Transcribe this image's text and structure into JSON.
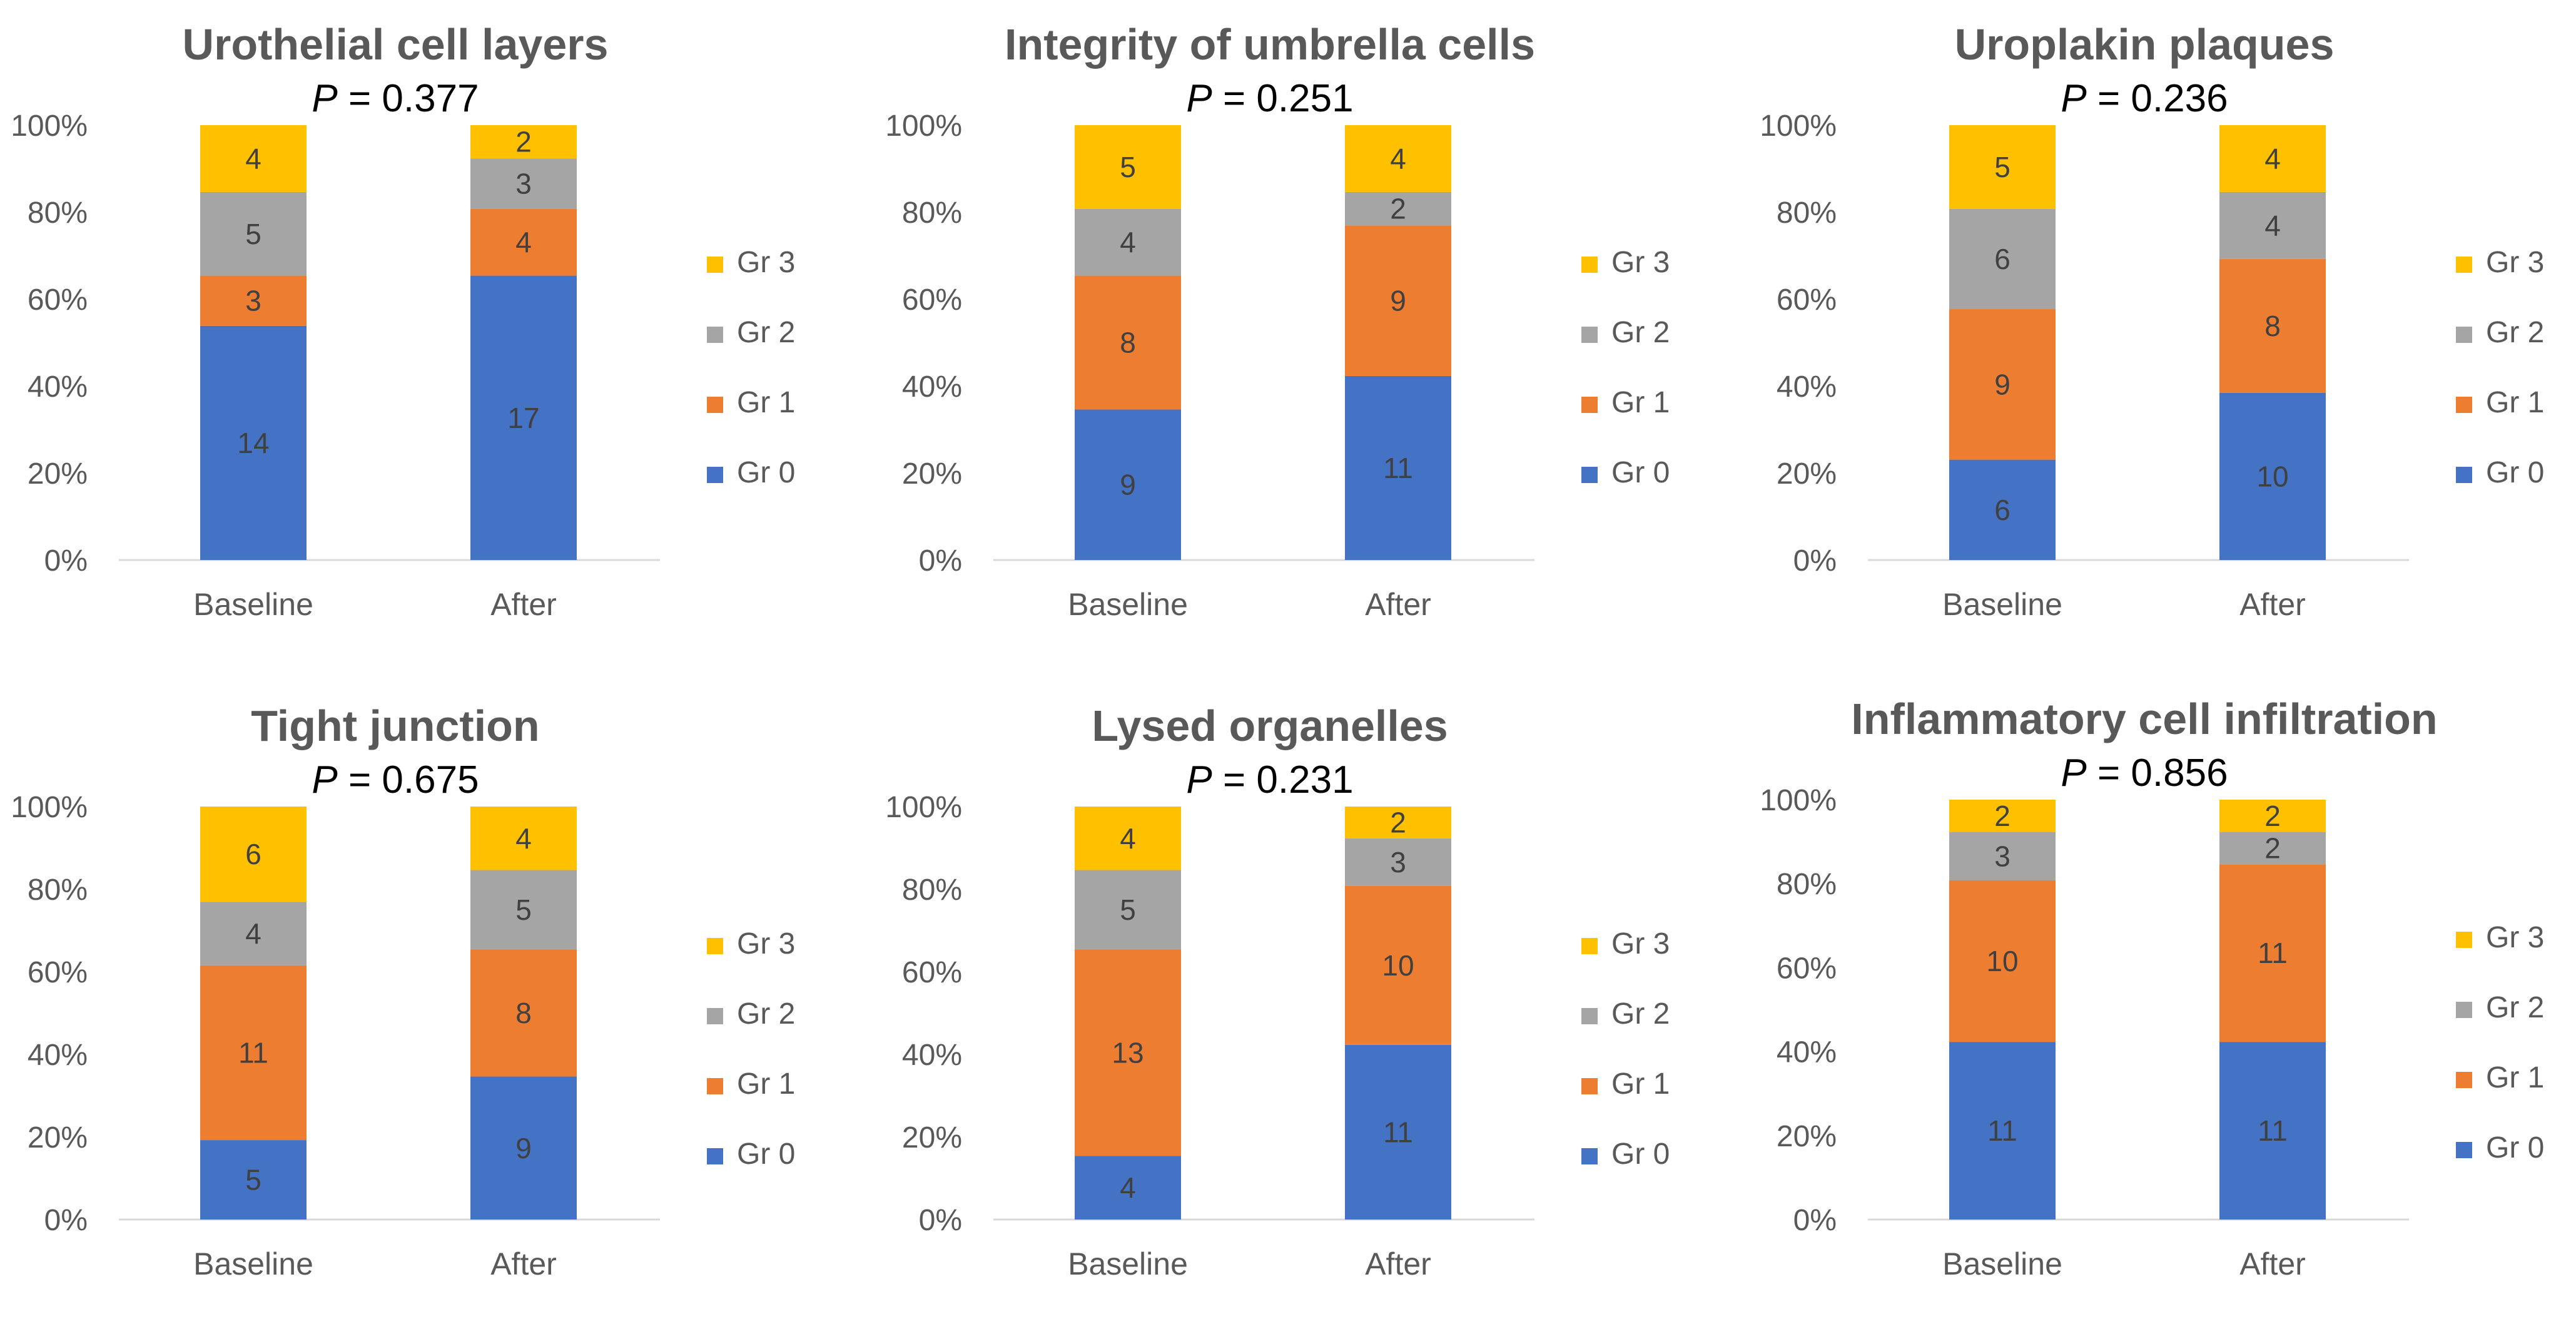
{
  "chart_data": [
    {
      "type": "bar",
      "stacked": "percent",
      "title": "Urothelial cell layers",
      "p_label": "P",
      "p_value": "= 0.377",
      "categories": [
        "Baseline",
        "After"
      ],
      "series": [
        {
          "name": "Gr 0",
          "values": [
            14,
            17
          ]
        },
        {
          "name": "Gr 1",
          "values": [
            3,
            4
          ]
        },
        {
          "name": "Gr 2",
          "values": [
            5,
            3
          ]
        },
        {
          "name": "Gr 3",
          "values": [
            4,
            2
          ]
        }
      ],
      "yticks": [
        "0%",
        "20%",
        "40%",
        "60%",
        "80%",
        "100%"
      ],
      "legend": "right",
      "grid": false
    },
    {
      "type": "bar",
      "stacked": "percent",
      "title": "Integrity of umbrella cells",
      "p_label": "P",
      "p_value": "= 0.251",
      "categories": [
        "Baseline",
        "After"
      ],
      "series": [
        {
          "name": "Gr 0",
          "values": [
            9,
            11
          ]
        },
        {
          "name": "Gr 1",
          "values": [
            8,
            9
          ]
        },
        {
          "name": "Gr 2",
          "values": [
            4,
            2
          ]
        },
        {
          "name": "Gr 3",
          "values": [
            5,
            4
          ]
        }
      ],
      "yticks": [
        "0%",
        "20%",
        "40%",
        "60%",
        "80%",
        "100%"
      ],
      "legend": "right",
      "grid": false
    },
    {
      "type": "bar",
      "stacked": "percent",
      "title": "Uroplakin plaques",
      "p_label": "P",
      "p_value": "= 0.236",
      "categories": [
        "Baseline",
        "After"
      ],
      "series": [
        {
          "name": "Gr 0",
          "values": [
            6,
            10
          ]
        },
        {
          "name": "Gr 1",
          "values": [
            9,
            8
          ]
        },
        {
          "name": "Gr 2",
          "values": [
            6,
            4
          ]
        },
        {
          "name": "Gr 3",
          "values": [
            5,
            4
          ]
        }
      ],
      "yticks": [
        "0%",
        "20%",
        "40%",
        "60%",
        "80%",
        "100%"
      ],
      "legend": "right",
      "grid": false
    },
    {
      "type": "bar",
      "stacked": "percent",
      "title": "Tight junction",
      "p_label": "P",
      "p_value": "= 0.675",
      "categories": [
        "Baseline",
        "After"
      ],
      "series": [
        {
          "name": "Gr 0",
          "values": [
            5,
            9
          ]
        },
        {
          "name": "Gr 1",
          "values": [
            11,
            8
          ]
        },
        {
          "name": "Gr 2",
          "values": [
            4,
            5
          ]
        },
        {
          "name": "Gr 3",
          "values": [
            6,
            4
          ]
        }
      ],
      "yticks": [
        "0%",
        "20%",
        "40%",
        "60%",
        "80%",
        "100%"
      ],
      "legend": "right",
      "grid": false
    },
    {
      "type": "bar",
      "stacked": "percent",
      "title": "Lysed organelles",
      "p_label": "P",
      "p_value": "= 0.231",
      "categories": [
        "Baseline",
        "After"
      ],
      "series": [
        {
          "name": "Gr 0",
          "values": [
            4,
            11
          ]
        },
        {
          "name": "Gr 1",
          "values": [
            13,
            10
          ]
        },
        {
          "name": "Gr 2",
          "values": [
            5,
            3
          ]
        },
        {
          "name": "Gr 3",
          "values": [
            4,
            2
          ]
        }
      ],
      "yticks": [
        "0%",
        "20%",
        "40%",
        "60%",
        "80%",
        "100%"
      ],
      "legend": "right",
      "grid": false
    },
    {
      "type": "bar",
      "stacked": "percent",
      "title": "Inflammatory cell infiltration",
      "p_label": "P",
      "p_value": "= 0.856",
      "categories": [
        "Baseline",
        "After"
      ],
      "series": [
        {
          "name": "Gr 0",
          "values": [
            11,
            11
          ]
        },
        {
          "name": "Gr 1",
          "values": [
            10,
            11
          ]
        },
        {
          "name": "Gr 2",
          "values": [
            3,
            2
          ]
        },
        {
          "name": "Gr 3",
          "values": [
            2,
            2
          ]
        }
      ],
      "yticks": [
        "0%",
        "20%",
        "40%",
        "60%",
        "80%",
        "100%"
      ],
      "legend": "right",
      "grid": false
    }
  ],
  "colors": {
    "Gr 0": "#4472C4",
    "Gr 1": "#ED7D31",
    "Gr 2": "#A5A5A5",
    "Gr 3": "#FFC000",
    "axis": "#D9D9D9"
  }
}
